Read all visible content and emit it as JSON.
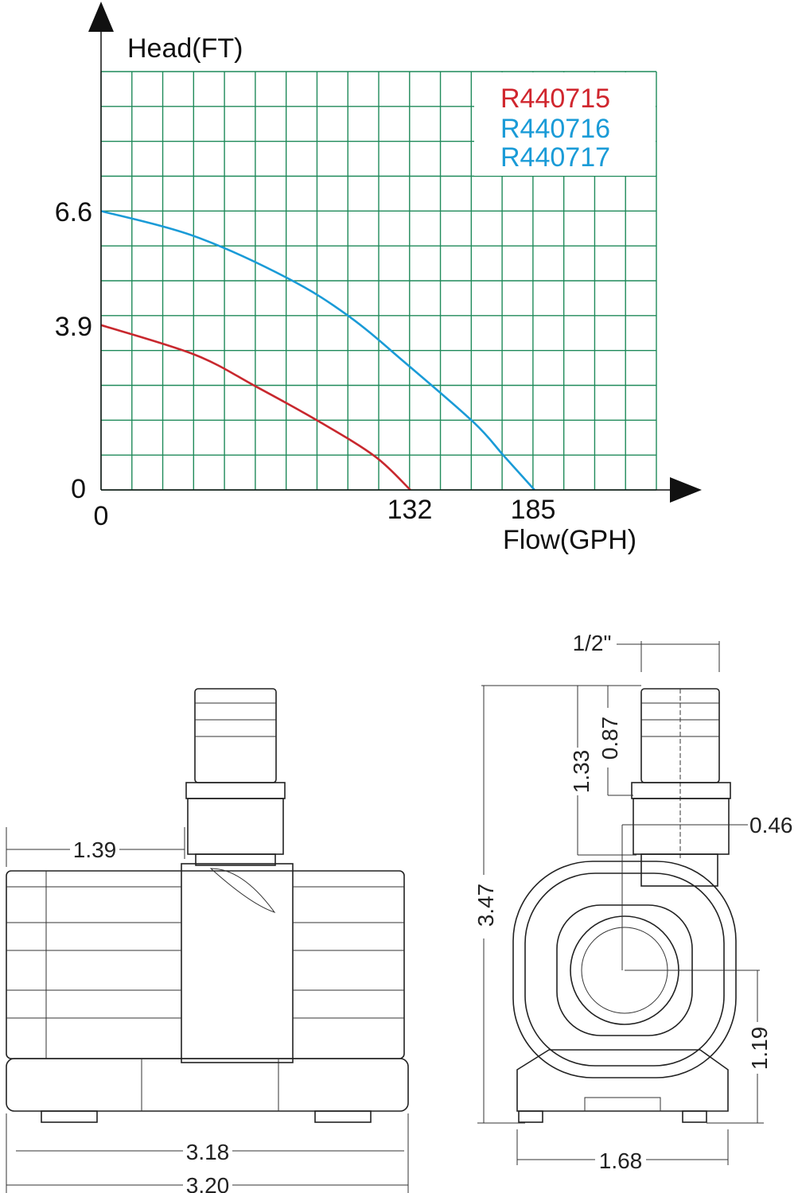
{
  "chart_data": {
    "type": "line",
    "ylabel": "Head(FT)",
    "xlabel": "Flow(GPH)",
    "xlim": [
      0,
      237
    ],
    "ylim": [
      0,
      9.9
    ],
    "grid": true,
    "grid_color": "#1f8a5a",
    "x_ticks": [
      "0",
      "132",
      "185"
    ],
    "y_ticks": [
      "0",
      "3.9",
      "6.6"
    ],
    "legend_position": "top-right",
    "legend": [
      {
        "label": "R440715",
        "color": "#d0262e"
      },
      {
        "label": "R440716",
        "color": "#1a9bd7"
      },
      {
        "label": "R440717",
        "color": "#1a9bd7"
      }
    ],
    "series": [
      {
        "name": "R440715",
        "color": "#c8282e",
        "x": [
          0,
          40,
          66,
          93,
          117,
          132
        ],
        "y": [
          3.9,
          3.2,
          2.45,
          1.62,
          0.79,
          0
        ]
      },
      {
        "name": "R440716 / R440717",
        "color": "#1a9bd7",
        "x": [
          0,
          40,
          80,
          106,
          130,
          159,
          172,
          185
        ],
        "y": [
          6.6,
          6.0,
          5.0,
          4.1,
          3.0,
          1.6,
          0.8,
          0
        ]
      }
    ]
  },
  "dimensions": {
    "side_offset": "1.39",
    "side_width_inner": "3.18",
    "side_width_outer": "3.20",
    "outlet_diameter": "1/2\"",
    "outlet_height": "1.33",
    "barb_height": "0.87",
    "outlet_offset": "0.46",
    "total_height": "3.47",
    "center_height": "1.19",
    "base_width": "1.68"
  }
}
